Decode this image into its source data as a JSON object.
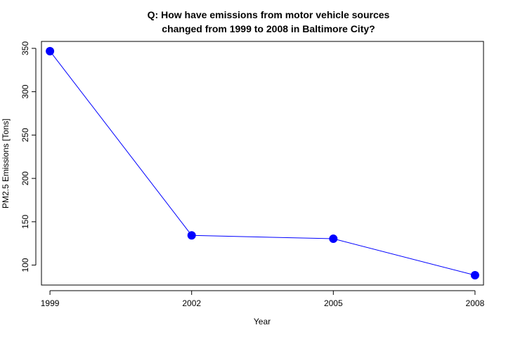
{
  "chart_data": {
    "type": "line",
    "title": [
      "Q: How have emissions from motor vehicle sources",
      "changed from 1999 to 2008 in Baltimore City?"
    ],
    "xlabel": "Year",
    "ylabel": "PM2.5 Emissions [Tons]",
    "x": [
      1999,
      2002,
      2005,
      2008
    ],
    "series": [
      {
        "values": [
          346.8,
          134.3,
          130.4,
          88.3
        ],
        "color": "#0000ff"
      }
    ],
    "x_ticks": [
      "1999",
      "2002",
      "2005",
      "2008"
    ],
    "y_ticks": [
      "100",
      "150",
      "200",
      "250",
      "300",
      "350"
    ],
    "xlim": [
      1998.82,
      2008.18
    ],
    "ylim": [
      77.0,
      358.0
    ],
    "grid": false,
    "legend": "none",
    "marker": "filled-circle"
  }
}
